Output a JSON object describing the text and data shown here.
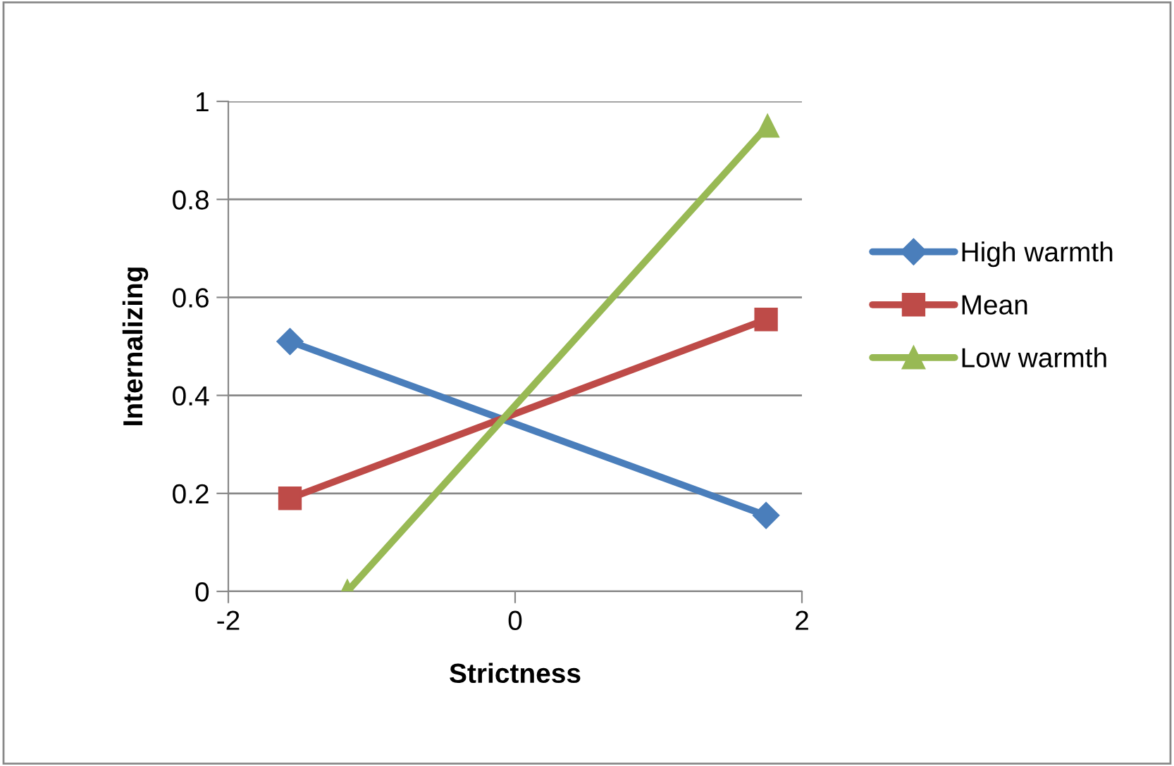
{
  "chart_data": {
    "type": "line",
    "xlabel": "Strictness",
    "ylabel": "Internalizing",
    "x": [
      -1.57,
      1.75
    ],
    "series": [
      {
        "name": "High warmth",
        "color": "#4a7ebb",
        "marker": "diamond",
        "values": [
          0.51,
          0.155
        ]
      },
      {
        "name": "Mean",
        "color": "#be4b48",
        "marker": "square",
        "values": [
          0.19,
          0.555
        ]
      },
      {
        "name": "Low warmth",
        "color": "#98b954",
        "marker": "triangle",
        "x": [
          -1.17,
          1.76
        ],
        "values": [
          0,
          0.95
        ]
      }
    ],
    "xlim": [
      -2,
      2
    ],
    "xticks": [
      -2,
      0,
      2
    ],
    "ylim": [
      0,
      1
    ],
    "yticks": [
      0,
      0.2,
      0.4,
      0.6,
      0.8,
      1
    ],
    "grid": "y",
    "legend": "right",
    "line_style": "solid"
  }
}
